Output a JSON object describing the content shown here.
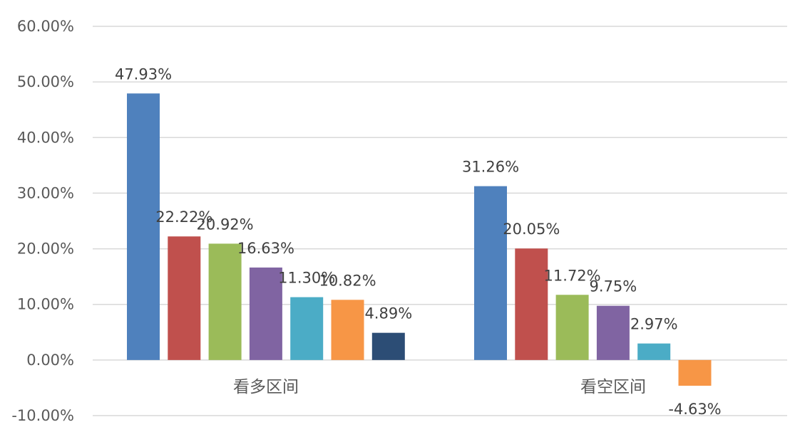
{
  "chart_data": {
    "type": "bar",
    "title": "",
    "xlabel": "",
    "ylabel": "",
    "ylim": [
      -0.1,
      0.6
    ],
    "y_ticks": [
      "60.00%",
      "50.00%",
      "40.00%",
      "30.00%",
      "20.00%",
      "10.00%",
      "0.00%",
      "-10.00%"
    ],
    "grid": true,
    "legend": "none",
    "categories": [
      "看多区间",
      "看空区间"
    ],
    "groups": [
      {
        "category": "看多区间",
        "values": [
          0.4793,
          0.2222,
          0.2092,
          0.1663,
          0.113,
          0.1082,
          0.0489
        ],
        "labels": [
          "47.93%",
          "22.22%",
          "20.92%",
          "16.63%",
          "11.30%",
          "10.82%",
          "4.89%"
        ]
      },
      {
        "category": "看空区间",
        "values": [
          0.3126,
          0.2005,
          0.1172,
          0.0975,
          0.0297,
          -0.0463
        ],
        "labels": [
          "31.26%",
          "20.05%",
          "11.72%",
          "9.75%",
          "2.97%",
          "-4.63%"
        ]
      }
    ],
    "colors": [
      "#4f81bd",
      "#c0504d",
      "#9bbb59",
      "#8064a2",
      "#4bacc6",
      "#f79646",
      "#2c4d75"
    ]
  }
}
